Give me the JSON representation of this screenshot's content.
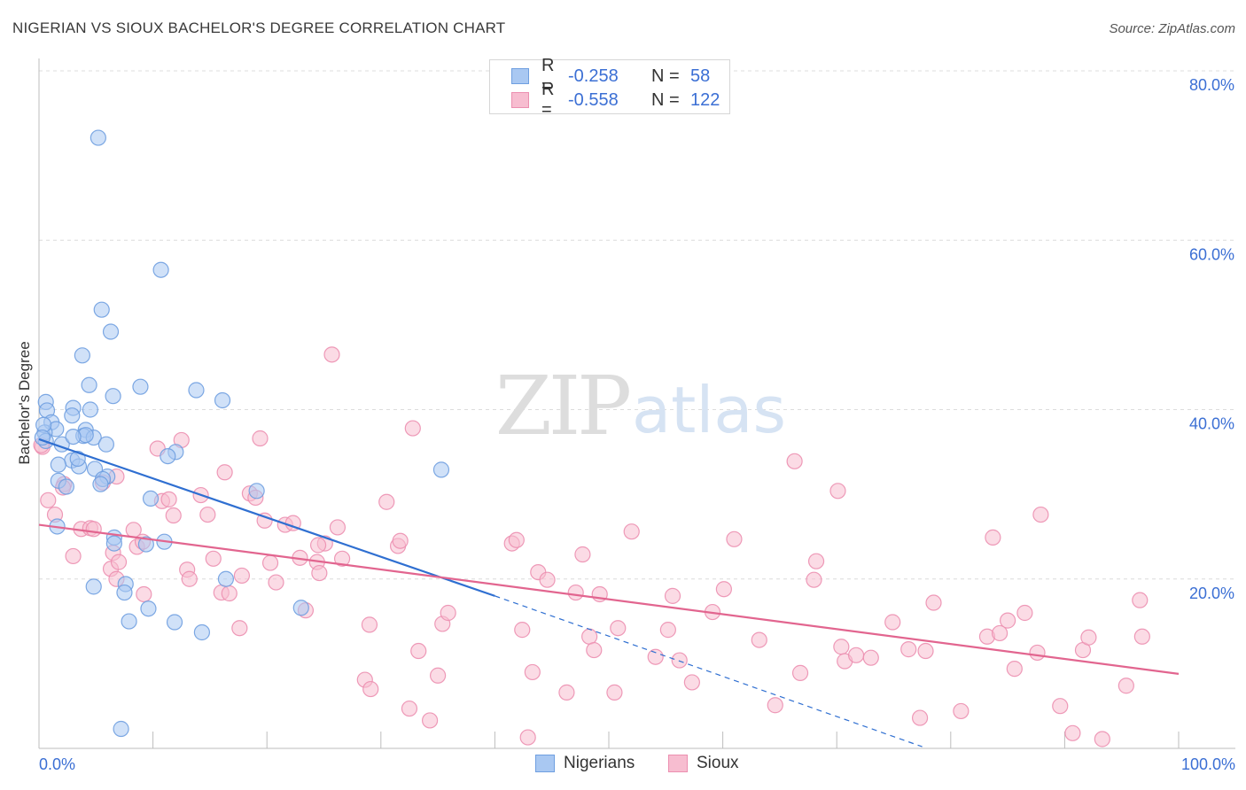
{
  "header": {
    "title": "NIGERIAN VS SIOUX BACHELOR'S DEGREE CORRELATION CHART",
    "source": "Source: ZipAtlas.com"
  },
  "watermark": {
    "zip": "ZIP",
    "atlas": "atlas"
  },
  "legend": {
    "rows": [
      {
        "r_label": "R =",
        "r_value": "-0.258",
        "n_label": "N =",
        "n_value": "58",
        "color": "#a9c8f2",
        "border": "#6f9fe0"
      },
      {
        "r_label": "R =",
        "r_value": "-0.558",
        "n_label": "N =",
        "n_value": "122",
        "color": "#f7bdd0",
        "border": "#ec8fb0"
      }
    ]
  },
  "bottom_legend": {
    "items": [
      {
        "label": "Nigerians",
        "color": "#a9c8f2",
        "border": "#6f9fe0"
      },
      {
        "label": "Sioux",
        "color": "#f7bdd0",
        "border": "#ec8fb0"
      }
    ]
  },
  "chart_data": {
    "type": "scatter",
    "title": "NIGERIAN VS SIOUX BACHELOR'S DEGREE CORRELATION CHART",
    "xlabel": "",
    "ylabel": "Bachelor's Degree",
    "xlim": [
      0,
      100
    ],
    "ylim": [
      0,
      82
    ],
    "x_tick_labels": [
      "0.0%",
      "100.0%"
    ],
    "y_ticks": [
      20,
      40,
      60,
      80
    ],
    "y_tick_labels": [
      "20.0%",
      "40.0%",
      "60.0%",
      "80.0%"
    ],
    "grid": true,
    "series": [
      {
        "name": "Nigerians",
        "color": "#6f9fe0",
        "fill": "#a9c8f2",
        "line_color": "#2f6fd1",
        "trend": {
          "x0": 0,
          "y0": 36.5,
          "x1": 40,
          "y1": 18,
          "dash_to_x": 77.5,
          "dash_to_y": 0.2
        },
        "points": [
          [
            5.2,
            72.1
          ],
          [
            10.7,
            56.5
          ],
          [
            5.5,
            51.8
          ],
          [
            6.3,
            49.2
          ],
          [
            3.8,
            46.4
          ],
          [
            4.4,
            42.9
          ],
          [
            8.9,
            42.7
          ],
          [
            6.5,
            41.6
          ],
          [
            13.8,
            42.3
          ],
          [
            16.1,
            41.1
          ],
          [
            0.6,
            40.9
          ],
          [
            0.7,
            39.9
          ],
          [
            3.0,
            40.2
          ],
          [
            4.5,
            40.0
          ],
          [
            2.9,
            39.3
          ],
          [
            1.1,
            38.5
          ],
          [
            1.5,
            37.7
          ],
          [
            4.1,
            37.6
          ],
          [
            0.5,
            37.3
          ],
          [
            3.9,
            36.9
          ],
          [
            4.8,
            36.7
          ],
          [
            4.1,
            37.0
          ],
          [
            0.6,
            36.3
          ],
          [
            2.0,
            35.9
          ],
          [
            5.9,
            35.9
          ],
          [
            12.0,
            35.0
          ],
          [
            11.3,
            34.5
          ],
          [
            2.9,
            34.0
          ],
          [
            1.7,
            33.5
          ],
          [
            3.5,
            33.3
          ],
          [
            3.4,
            34.2
          ],
          [
            4.9,
            33.0
          ],
          [
            6.0,
            32.1
          ],
          [
            5.6,
            31.8
          ],
          [
            1.7,
            31.6
          ],
          [
            2.4,
            30.9
          ],
          [
            5.4,
            31.2
          ],
          [
            19.1,
            30.4
          ],
          [
            9.8,
            29.5
          ],
          [
            35.3,
            32.9
          ],
          [
            1.6,
            26.2
          ],
          [
            6.6,
            24.9
          ],
          [
            11.0,
            24.4
          ],
          [
            9.4,
            24.1
          ],
          [
            6.6,
            24.2
          ],
          [
            16.4,
            20.0
          ],
          [
            7.6,
            19.4
          ],
          [
            4.8,
            19.1
          ],
          [
            7.5,
            18.4
          ],
          [
            9.6,
            16.5
          ],
          [
            7.9,
            15.0
          ],
          [
            11.9,
            14.9
          ],
          [
            14.3,
            13.7
          ],
          [
            23.0,
            16.6
          ],
          [
            7.2,
            2.3
          ],
          [
            0.4,
            38.2
          ],
          [
            0.3,
            36.7
          ],
          [
            3.0,
            36.8
          ]
        ]
      },
      {
        "name": "Sioux",
        "color": "#ec8fb0",
        "fill": "#f7bdd0",
        "line_color": "#e2658f",
        "trend": {
          "x0": 0,
          "y0": 26.4,
          "x1": 100,
          "y1": 8.8
        },
        "points": [
          [
            0.3,
            35.6
          ],
          [
            0.8,
            29.3
          ],
          [
            1.4,
            27.6
          ],
          [
            2.2,
            31.2
          ],
          [
            3.7,
            25.9
          ],
          [
            4.5,
            26.0
          ],
          [
            4.8,
            25.9
          ],
          [
            5.6,
            31.4
          ],
          [
            6.8,
            32.1
          ],
          [
            3.0,
            22.7
          ],
          [
            6.5,
            23.1
          ],
          [
            6.3,
            21.2
          ],
          [
            7.0,
            22.0
          ],
          [
            6.8,
            20.0
          ],
          [
            8.3,
            25.8
          ],
          [
            8.6,
            23.8
          ],
          [
            9.1,
            24.4
          ],
          [
            9.2,
            18.2
          ],
          [
            10.8,
            29.2
          ],
          [
            11.4,
            29.4
          ],
          [
            10.4,
            35.4
          ],
          [
            12.5,
            36.4
          ],
          [
            11.8,
            27.5
          ],
          [
            14.2,
            29.9
          ],
          [
            14.8,
            27.6
          ],
          [
            13.0,
            21.1
          ],
          [
            13.2,
            20.0
          ],
          [
            15.3,
            22.4
          ],
          [
            16.3,
            32.6
          ],
          [
            16.0,
            18.4
          ],
          [
            16.7,
            18.3
          ],
          [
            17.6,
            14.2
          ],
          [
            17.8,
            20.4
          ],
          [
            18.5,
            30.1
          ],
          [
            19.0,
            29.6
          ],
          [
            19.4,
            36.6
          ],
          [
            19.8,
            26.9
          ],
          [
            20.3,
            21.9
          ],
          [
            20.8,
            19.6
          ],
          [
            21.6,
            26.4
          ],
          [
            22.3,
            26.6
          ],
          [
            22.9,
            22.5
          ],
          [
            23.4,
            16.3
          ],
          [
            24.4,
            22.0
          ],
          [
            24.6,
            20.7
          ],
          [
            25.1,
            24.2
          ],
          [
            25.7,
            46.5
          ],
          [
            26.2,
            26.1
          ],
          [
            26.6,
            22.4
          ],
          [
            29.0,
            14.6
          ],
          [
            28.6,
            8.1
          ],
          [
            29.1,
            7.0
          ],
          [
            30.5,
            29.1
          ],
          [
            31.5,
            23.9
          ],
          [
            31.7,
            24.5
          ],
          [
            32.5,
            4.7
          ],
          [
            32.8,
            37.8
          ],
          [
            33.3,
            11.5
          ],
          [
            34.3,
            3.3
          ],
          [
            35.4,
            14.7
          ],
          [
            35.0,
            8.6
          ],
          [
            35.9,
            16.0
          ],
          [
            41.5,
            24.2
          ],
          [
            41.9,
            24.6
          ],
          [
            42.4,
            14.0
          ],
          [
            42.9,
            1.3
          ],
          [
            43.3,
            9.0
          ],
          [
            43.8,
            20.8
          ],
          [
            44.6,
            19.9
          ],
          [
            46.3,
            6.6
          ],
          [
            47.1,
            18.4
          ],
          [
            47.7,
            22.9
          ],
          [
            48.3,
            13.2
          ],
          [
            48.7,
            11.6
          ],
          [
            49.2,
            18.2
          ],
          [
            50.5,
            6.6
          ],
          [
            50.8,
            14.2
          ],
          [
            52.0,
            25.6
          ],
          [
            54.1,
            10.8
          ],
          [
            55.2,
            14.0
          ],
          [
            55.6,
            18.0
          ],
          [
            56.2,
            10.4
          ],
          [
            57.3,
            7.8
          ],
          [
            59.1,
            16.1
          ],
          [
            60.1,
            18.8
          ],
          [
            61.0,
            24.7
          ],
          [
            63.2,
            12.8
          ],
          [
            64.6,
            5.1
          ],
          [
            66.3,
            33.9
          ],
          [
            66.8,
            8.9
          ],
          [
            68.0,
            19.9
          ],
          [
            68.2,
            22.1
          ],
          [
            70.1,
            30.4
          ],
          [
            70.4,
            12.0
          ],
          [
            70.7,
            10.3
          ],
          [
            71.7,
            11.0
          ],
          [
            73.0,
            10.7
          ],
          [
            74.9,
            14.9
          ],
          [
            76.3,
            11.7
          ],
          [
            77.3,
            3.6
          ],
          [
            77.8,
            11.5
          ],
          [
            78.5,
            17.2
          ],
          [
            80.9,
            4.4
          ],
          [
            83.2,
            13.2
          ],
          [
            83.7,
            24.9
          ],
          [
            84.3,
            13.6
          ],
          [
            85.0,
            15.1
          ],
          [
            85.6,
            9.4
          ],
          [
            86.5,
            16.0
          ],
          [
            87.6,
            11.3
          ],
          [
            87.9,
            27.6
          ],
          [
            89.6,
            5.0
          ],
          [
            90.7,
            1.8
          ],
          [
            91.6,
            11.6
          ],
          [
            92.1,
            13.1
          ],
          [
            93.3,
            1.1
          ],
          [
            95.4,
            7.4
          ],
          [
            96.6,
            17.5
          ],
          [
            96.8,
            13.2
          ],
          [
            0.2,
            35.8
          ],
          [
            2.1,
            30.8
          ],
          [
            24.5,
            24.0
          ]
        ]
      }
    ]
  }
}
